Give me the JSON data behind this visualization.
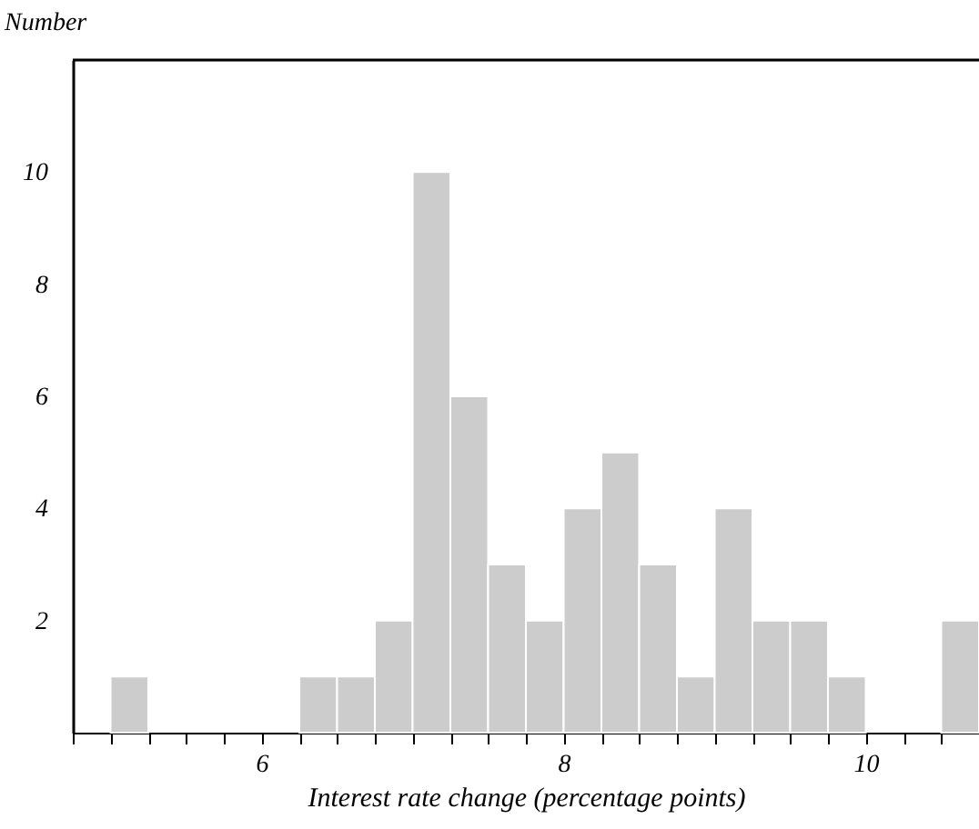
{
  "chart_data": {
    "type": "histogram",
    "ylabel": "Number",
    "xlabel": "Interest rate change (percentage points)",
    "bins": [
      4.75,
      5.0,
      5.25,
      5.5,
      5.75,
      6.0,
      6.25,
      6.5,
      6.75,
      7.0,
      7.25,
      7.5,
      7.75,
      8.0,
      8.25,
      8.5,
      8.75,
      9.0,
      9.25,
      9.5,
      9.75,
      10.0,
      10.25,
      10.5,
      10.75
    ],
    "values": [
      0,
      1,
      0,
      0,
      0,
      0,
      1,
      1,
      2,
      10,
      6,
      3,
      2,
      4,
      5,
      3,
      1,
      4,
      2,
      2,
      1,
      0,
      0,
      2
    ],
    "color": "#cccccc",
    "xlim": [
      4.75,
      10.75
    ],
    "xticks": [
      {
        "value": 4.75,
        "label": null
      },
      {
        "value": 5.0,
        "label": null
      },
      {
        "value": 5.25,
        "label": null
      },
      {
        "value": 5.5,
        "label": null
      },
      {
        "value": 5.75,
        "label": null
      },
      6,
      {
        "value": 6.25,
        "label": null
      },
      {
        "value": 6.5,
        "label": null
      },
      {
        "value": 6.75,
        "label": null
      },
      {
        "value": 7.0,
        "label": null
      },
      {
        "value": 7.25,
        "label": null
      },
      {
        "value": 7.5,
        "label": null
      },
      {
        "value": 7.75,
        "label": null
      },
      8,
      {
        "value": 8.25,
        "label": null
      },
      {
        "value": 8.5,
        "label": null
      },
      {
        "value": 8.75,
        "label": null
      },
      {
        "value": 9.0,
        "label": null
      },
      {
        "value": 9.25,
        "label": null
      },
      {
        "value": 9.5,
        "label": null
      },
      {
        "value": 9.75,
        "label": null
      },
      10,
      {
        "value": 10.25,
        "label": null
      },
      {
        "value": 10.5,
        "label": null
      }
    ],
    "ylim": [
      0,
      12
    ],
    "yticks": [
      2,
      4,
      6,
      8,
      10
    ],
    "grid": false
  }
}
